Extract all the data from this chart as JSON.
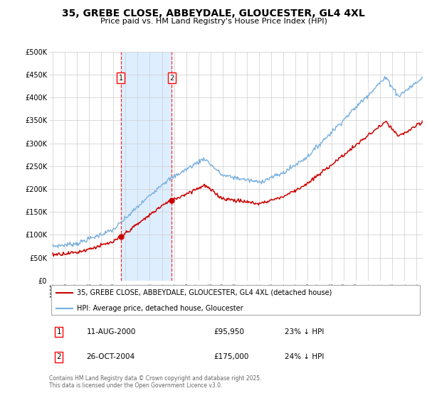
{
  "title": "35, GREBE CLOSE, ABBEYDALE, GLOUCESTER, GL4 4XL",
  "subtitle": "Price paid vs. HM Land Registry's House Price Index (HPI)",
  "ylim": [
    0,
    500000
  ],
  "yticks": [
    0,
    50000,
    100000,
    150000,
    200000,
    250000,
    300000,
    350000,
    400000,
    450000,
    500000
  ],
  "ytick_labels": [
    "£0",
    "£50K",
    "£100K",
    "£150K",
    "£200K",
    "£250K",
    "£300K",
    "£350K",
    "£400K",
    "£450K",
    "£500K"
  ],
  "x_start_year": 1995,
  "x_end_year": 2025,
  "sale1_date": 2000.61,
  "sale1_price": 95950,
  "sale1_label": "11-AUG-2000",
  "sale1_amount": "£95,950",
  "sale1_hpi": "23% ↓ HPI",
  "sale2_date": 2004.82,
  "sale2_price": 175000,
  "sale2_label": "26-OCT-2004",
  "sale2_amount": "£175,000",
  "sale2_hpi": "24% ↓ HPI",
  "red_line_color": "#cc0000",
  "blue_line_color": "#7ab0de",
  "shade_color": "#ddeeff",
  "grid_color": "#cccccc",
  "bg_color": "#ffffff",
  "legend_line1": "35, GREBE CLOSE, ABBEYDALE, GLOUCESTER, GL4 4XL (detached house)",
  "legend_line2": "HPI: Average price, detached house, Gloucester",
  "footer": "Contains HM Land Registry data © Crown copyright and database right 2025.\nThis data is licensed under the Open Government Licence v3.0."
}
